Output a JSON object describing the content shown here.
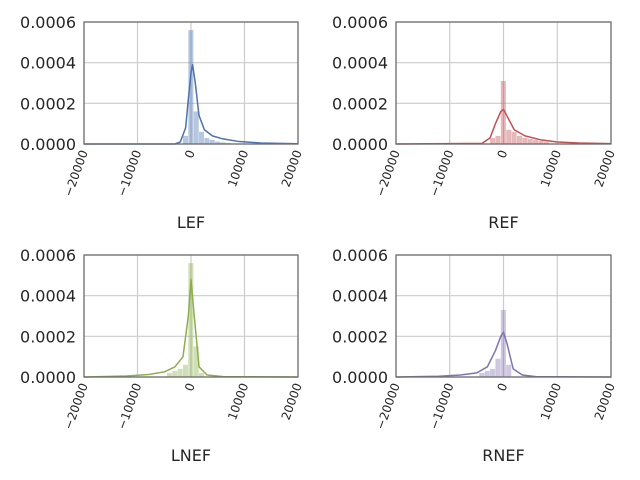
{
  "chart_data": [
    {
      "type": "histogram",
      "xlabel": "LEF",
      "color": "#4c72b0",
      "xlim": [
        -20000,
        20000
      ],
      "ylim": [
        0,
        0.0006
      ],
      "xticks": [
        "−20000",
        "−10000",
        "0",
        "10000",
        "20000"
      ],
      "yticks": [
        "0.0000",
        "0.0002",
        "0.0004",
        "0.0006"
      ],
      "grid": true,
      "bin_width": 1000,
      "bins": [
        {
          "x0": -1500,
          "density": 4e-05
        },
        {
          "x0": -500,
          "density": 0.00056
        },
        {
          "x0": 500,
          "density": 0.00016
        },
        {
          "x0": 1500,
          "density": 6e-05
        },
        {
          "x0": 2500,
          "density": 3e-05
        },
        {
          "x0": 3500,
          "density": 2e-05
        },
        {
          "x0": 4500,
          "density": 1.2e-05
        },
        {
          "x0": 5500,
          "density": 8e-06
        },
        {
          "x0": 6500,
          "density": 5e-06
        }
      ],
      "kde": [
        [
          -20000,
          0
        ],
        [
          -3000,
          0
        ],
        [
          -2000,
          1e-05
        ],
        [
          -1000,
          8e-05
        ],
        [
          -500,
          0.00022
        ],
        [
          0,
          0.00035
        ],
        [
          300,
          0.00039
        ],
        [
          800,
          0.0003
        ],
        [
          1500,
          0.00014
        ],
        [
          2500,
          7e-05
        ],
        [
          4000,
          4e-05
        ],
        [
          6000,
          2.5e-05
        ],
        [
          9000,
          1.2e-05
        ],
        [
          13000,
          5e-06
        ],
        [
          20000,
          1e-06
        ]
      ]
    },
    {
      "type": "histogram",
      "xlabel": "REF",
      "color": "#c44e52",
      "xlim": [
        -20000,
        20000
      ],
      "ylim": [
        0,
        0.0006
      ],
      "xticks": [
        "−20000",
        "−10000",
        "0",
        "10000",
        "20000"
      ],
      "yticks": [
        "0.0000",
        "0.0002",
        "0.0004",
        "0.0006"
      ],
      "grid": true,
      "bin_width": 1000,
      "bins": [
        {
          "x0": -2500,
          "density": 3e-05
        },
        {
          "x0": -1500,
          "density": 4e-05
        },
        {
          "x0": -500,
          "density": 0.00031
        },
        {
          "x0": 500,
          "density": 7e-05
        },
        {
          "x0": 1500,
          "density": 6e-05
        },
        {
          "x0": 2500,
          "density": 4e-05
        },
        {
          "x0": 3500,
          "density": 3e-05
        },
        {
          "x0": 4500,
          "density": 2.5e-05
        },
        {
          "x0": 5500,
          "density": 2e-05
        },
        {
          "x0": 6500,
          "density": 1.5e-05
        },
        {
          "x0": 7500,
          "density": 1e-05
        }
      ],
      "kde": [
        [
          -20000,
          0
        ],
        [
          -4000,
          3e-06
        ],
        [
          -2500,
          3e-05
        ],
        [
          -1500,
          0.0001
        ],
        [
          -500,
          0.00016
        ],
        [
          0,
          0.00017
        ],
        [
          800,
          0.00013
        ],
        [
          2000,
          7e-05
        ],
        [
          4000,
          4e-05
        ],
        [
          7000,
          2e-05
        ],
        [
          10000,
          1e-05
        ],
        [
          14000,
          5e-06
        ],
        [
          20000,
          2e-06
        ]
      ]
    },
    {
      "type": "histogram",
      "xlabel": "LNEF",
      "color": "#8cae4c",
      "xlim": [
        -20000,
        20000
      ],
      "ylim": [
        0,
        0.0006
      ],
      "xticks": [
        "−20000",
        "−10000",
        "0",
        "10000",
        "20000"
      ],
      "yticks": [
        "0.0000",
        "0.0002",
        "0.0004",
        "0.0006"
      ],
      "grid": true,
      "bin_width": 1000,
      "bins": [
        {
          "x0": -4500,
          "density": 2e-05
        },
        {
          "x0": -3500,
          "density": 3e-05
        },
        {
          "x0": -2500,
          "density": 4e-05
        },
        {
          "x0": -1500,
          "density": 6e-05
        },
        {
          "x0": -500,
          "density": 0.00056
        },
        {
          "x0": 500,
          "density": 0.00015
        },
        {
          "x0": 1500,
          "density": 2e-05
        }
      ],
      "kde": [
        [
          -20000,
          0
        ],
        [
          -12000,
          5e-06
        ],
        [
          -8000,
          1.2e-05
        ],
        [
          -5000,
          2.5e-05
        ],
        [
          -3000,
          5e-05
        ],
        [
          -1500,
          0.0001
        ],
        [
          -500,
          0.0003
        ],
        [
          0,
          0.00048
        ],
        [
          500,
          0.00033
        ],
        [
          1500,
          5e-05
        ],
        [
          3000,
          1e-05
        ],
        [
          6000,
          2e-06
        ],
        [
          20000,
          0
        ]
      ]
    },
    {
      "type": "histogram",
      "xlabel": "RNEF",
      "color": "#8172b2",
      "xlim": [
        -20000,
        20000
      ],
      "ylim": [
        0,
        0.0006
      ],
      "xticks": [
        "−20000",
        "−10000",
        "0",
        "10000",
        "20000"
      ],
      "yticks": [
        "0.0000",
        "0.0002",
        "0.0004",
        "0.0006"
      ],
      "grid": true,
      "bin_width": 1000,
      "bins": [
        {
          "x0": -4500,
          "density": 2e-05
        },
        {
          "x0": -3500,
          "density": 3e-05
        },
        {
          "x0": -2500,
          "density": 4e-05
        },
        {
          "x0": -1500,
          "density": 9e-05
        },
        {
          "x0": -500,
          "density": 0.00033
        },
        {
          "x0": 500,
          "density": 6e-05
        }
      ],
      "kde": [
        [
          -20000,
          0
        ],
        [
          -12000,
          4e-06
        ],
        [
          -8000,
          1e-05
        ],
        [
          -5000,
          2e-05
        ],
        [
          -3000,
          5e-05
        ],
        [
          -1500,
          0.00013
        ],
        [
          -500,
          0.0002
        ],
        [
          0,
          0.00022
        ],
        [
          700,
          0.00016
        ],
        [
          1800,
          4e-05
        ],
        [
          3500,
          1e-05
        ],
        [
          6000,
          2e-06
        ],
        [
          20000,
          0
        ]
      ]
    }
  ]
}
